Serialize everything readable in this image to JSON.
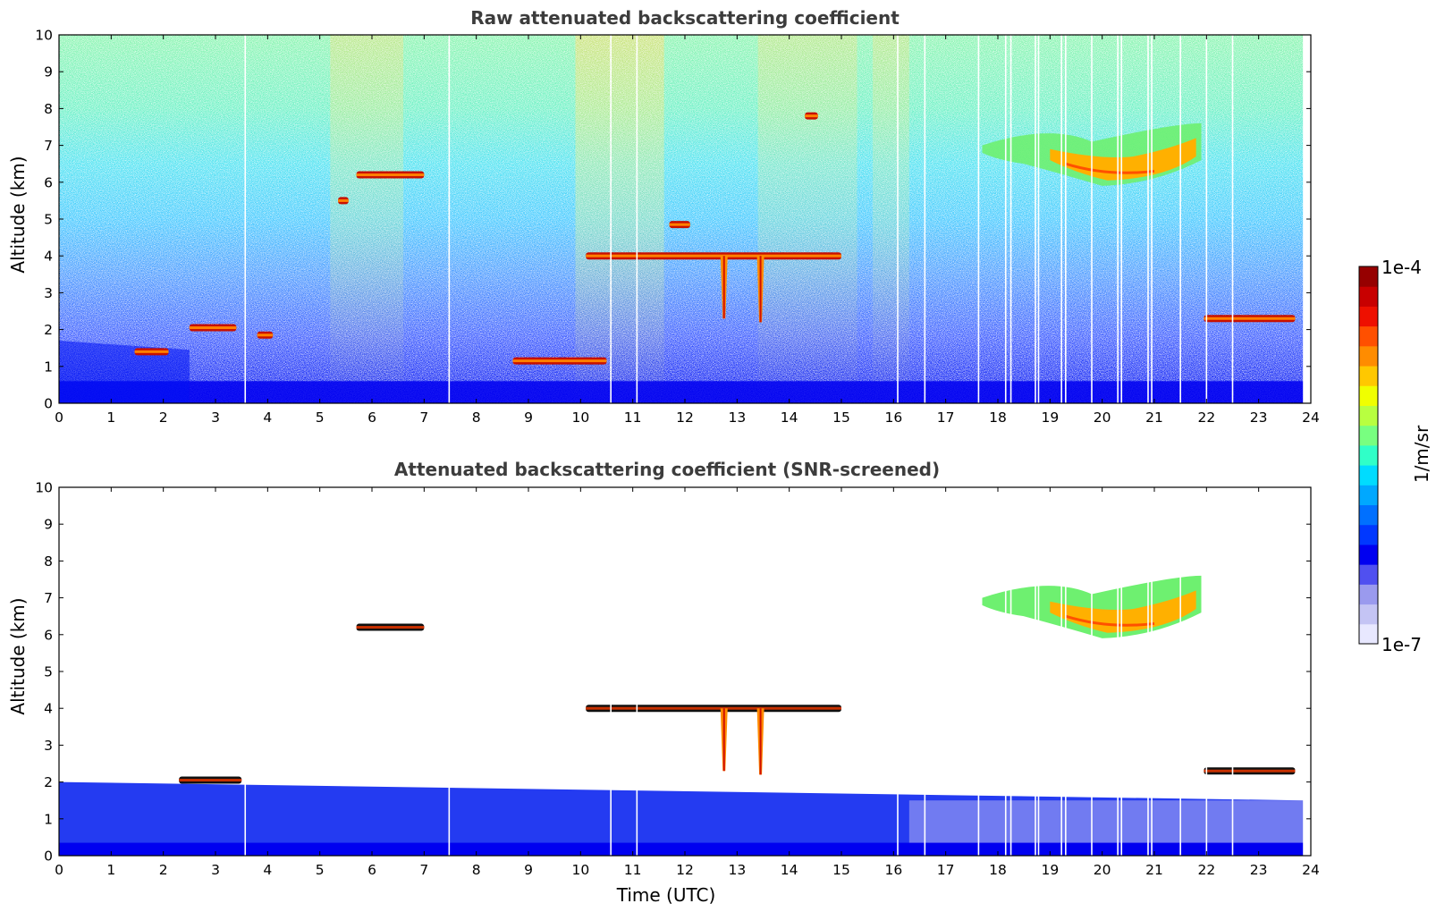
{
  "chart_data": [
    {
      "type": "heatmap",
      "title": "Raw attenuated backscattering coefficient",
      "xlabel": "",
      "ylabel": "Altitude (km)",
      "xlim": [
        0,
        24
      ],
      "ylim": [
        0,
        10
      ],
      "xticks": [
        0,
        1,
        2,
        3,
        4,
        5,
        6,
        7,
        8,
        9,
        10,
        11,
        12,
        13,
        14,
        15,
        16,
        17,
        18,
        19,
        20,
        21,
        22,
        23,
        24
      ],
      "yticks": [
        0,
        1,
        2,
        3,
        4,
        5,
        6,
        7,
        8,
        9,
        10
      ],
      "data_end_time": 23.85,
      "gap_times": [
        3.57,
        7.48,
        10.58,
        11.08,
        16.08,
        16.6,
        17.63,
        18.15,
        18.25,
        18.72,
        18.78,
        19.22,
        19.3,
        19.8,
        20.3,
        20.37,
        20.88,
        20.95,
        21.5,
        22.0,
        22.5
      ],
      "features": [
        {
          "kind": "aerosol_layer",
          "x": [
            0.0,
            2.5
          ],
          "y_top": [
            1.7,
            1.45
          ]
        },
        {
          "kind": "cloud",
          "x": [
            1.45,
            2.1
          ],
          "y": 1.4
        },
        {
          "kind": "cloud",
          "x": [
            2.5,
            3.4
          ],
          "y": 2.05
        },
        {
          "kind": "cloud",
          "x": [
            3.8,
            4.1
          ],
          "y": 1.85
        },
        {
          "kind": "cloud",
          "x": [
            5.7,
            7.0
          ],
          "y": 6.2
        },
        {
          "kind": "cloud",
          "x": [
            5.35,
            5.55
          ],
          "y": 5.5
        },
        {
          "kind": "cloud",
          "x": [
            8.7,
            10.5
          ],
          "y": 1.15
        },
        {
          "kind": "cloud",
          "x": [
            10.1,
            15.0
          ],
          "y": 4.0
        },
        {
          "kind": "cloud",
          "x": [
            11.7,
            12.1
          ],
          "y": 4.85
        },
        {
          "kind": "cloud",
          "x": [
            14.3,
            14.55
          ],
          "y": 7.8
        },
        {
          "kind": "fallstreak",
          "x": 12.75,
          "y": [
            4.0,
            2.3
          ]
        },
        {
          "kind": "fallstreak",
          "x": 13.45,
          "y": [
            4.0,
            2.2
          ]
        },
        {
          "kind": "cirrus",
          "x": [
            17.7,
            21.9
          ],
          "y": [
            5.9,
            7.6
          ]
        },
        {
          "kind": "cloud",
          "x": [
            21.95,
            23.7
          ],
          "y": 2.3
        }
      ]
    },
    {
      "type": "heatmap",
      "title": "Attenuated backscattering coefficient (SNR-screened)",
      "xlabel": "Time (UTC)",
      "ylabel": "Altitude (km)",
      "xlim": [
        0,
        24
      ],
      "ylim": [
        0,
        10
      ],
      "xticks": [
        0,
        1,
        2,
        3,
        4,
        5,
        6,
        7,
        8,
        9,
        10,
        11,
        12,
        13,
        14,
        15,
        16,
        17,
        18,
        19,
        20,
        21,
        22,
        23,
        24
      ],
      "yticks": [
        0,
        1,
        2,
        3,
        4,
        5,
        6,
        7,
        8,
        9,
        10
      ],
      "data_end_time": 23.85,
      "gap_times": [
        3.57,
        7.48,
        10.58,
        11.08,
        16.08,
        16.6,
        17.63,
        18.15,
        18.25,
        18.72,
        18.78,
        19.22,
        19.3,
        19.8,
        20.3,
        20.37,
        20.88,
        20.95,
        21.5,
        22.0,
        22.5
      ],
      "features": [
        {
          "kind": "aerosol_layer",
          "x": [
            0.0,
            23.85
          ],
          "y_top": [
            2.0,
            1.5
          ]
        },
        {
          "kind": "cloud",
          "x": [
            2.3,
            3.5
          ],
          "y": 2.05
        },
        {
          "kind": "cloud",
          "x": [
            5.7,
            7.0
          ],
          "y": 6.2
        },
        {
          "kind": "cloud",
          "x": [
            10.1,
            15.0
          ],
          "y": 4.0
        },
        {
          "kind": "fallstreak",
          "x": 12.75,
          "y": [
            4.0,
            2.3
          ]
        },
        {
          "kind": "fallstreak",
          "x": 13.45,
          "y": [
            4.0,
            2.2
          ]
        },
        {
          "kind": "cirrus",
          "x": [
            17.7,
            21.9
          ],
          "y": [
            5.9,
            7.6
          ]
        },
        {
          "kind": "cloud",
          "x": [
            21.95,
            23.7
          ],
          "y": 2.3
        }
      ]
    }
  ],
  "colorbar": {
    "label": "1/m/sr",
    "min_label": "1e-7",
    "max_label": "1e-4",
    "scale": "log",
    "range": [
      1e-07,
      0.0001
    ],
    "colors": [
      "#e8e8ff",
      "#c4c4f4",
      "#9a9aee",
      "#5050f0",
      "#0000f0",
      "#0038ff",
      "#0070ff",
      "#00a8ff",
      "#00dcff",
      "#30ffc8",
      "#78ff80",
      "#b8ff40",
      "#f0ff00",
      "#ffc800",
      "#ff8c00",
      "#ff5000",
      "#ee1000",
      "#c80000",
      "#960000"
    ]
  }
}
